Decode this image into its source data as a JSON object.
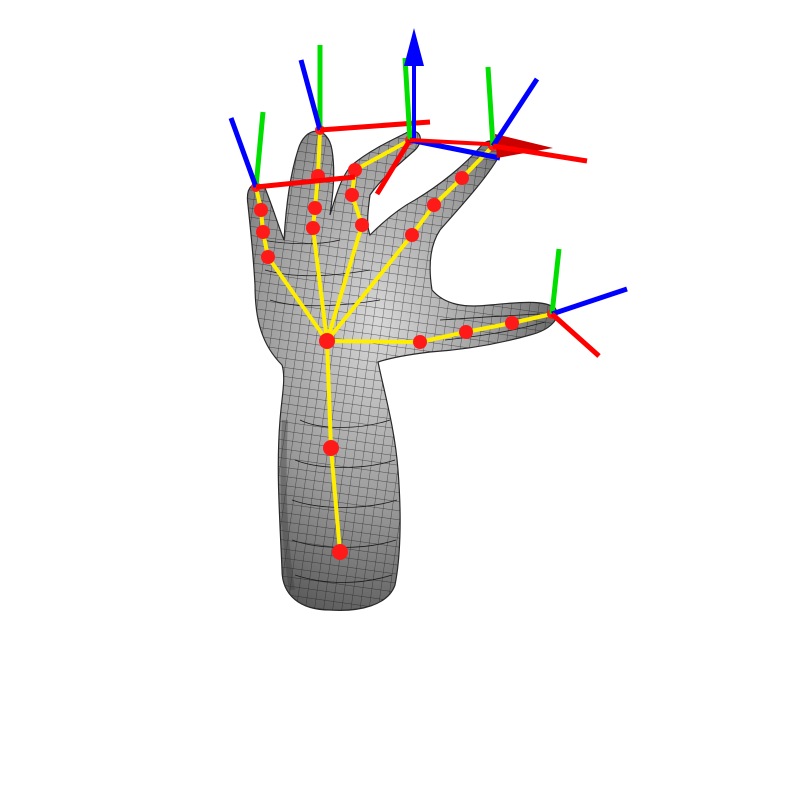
{
  "scene": {
    "background": "#ffffff",
    "mesh_fill": "#6e6e6e",
    "mesh_line": "#1a1a1a",
    "skeleton_color": "#ffee00",
    "joint_color": "#ff1a1a",
    "axis_colors": {
      "x": "#ff0000",
      "y": "#00e000",
      "z": "#0000ff"
    }
  },
  "skeleton": {
    "root_joint": "palm",
    "chains": [
      {
        "name": "arm",
        "joint_count": 3
      },
      {
        "name": "thumb",
        "joint_count": 5
      },
      {
        "name": "index",
        "joint_count": 5
      },
      {
        "name": "middle",
        "joint_count": 5
      },
      {
        "name": "ring",
        "joint_count": 4
      },
      {
        "name": "little",
        "joint_count": 5
      }
    ]
  }
}
